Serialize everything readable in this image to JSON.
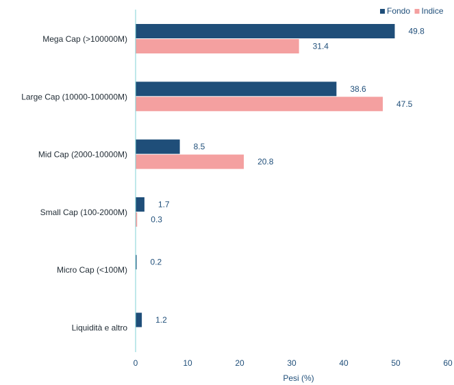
{
  "chart_data": {
    "type": "bar",
    "orientation": "horizontal",
    "categories": [
      "Mega Cap (>100000M)",
      "Large Cap (10000-100000M)",
      "Mid Cap (2000-10000M)",
      "Small Cap (100-2000M)",
      "Micro Cap (<100M)",
      "Liquidità e altro"
    ],
    "series": [
      {
        "name": "Fondo",
        "color": "#1f4e79",
        "values": [
          49.8,
          38.6,
          8.5,
          1.7,
          0.2,
          1.2
        ]
      },
      {
        "name": "Indice",
        "color": "#f4a0a0",
        "values": [
          31.4,
          47.5,
          20.8,
          0.3,
          null,
          null
        ]
      }
    ],
    "xlabel": "Pesi (%)",
    "xlim": [
      0,
      60
    ],
    "xticks": [
      0,
      10,
      20,
      30,
      40,
      50,
      60
    ],
    "grid": false,
    "legend_position": "top-right"
  }
}
